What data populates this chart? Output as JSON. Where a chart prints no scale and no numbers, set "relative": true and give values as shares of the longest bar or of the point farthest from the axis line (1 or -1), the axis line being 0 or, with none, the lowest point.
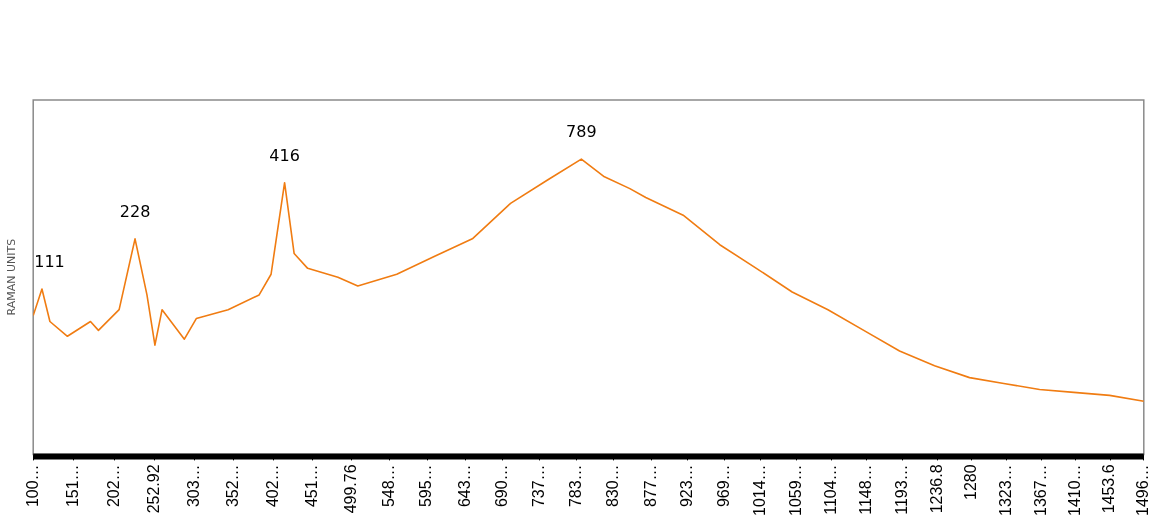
{
  "chart_data": {
    "type": "line",
    "ylabel": "RAMAN UNITS",
    "relative": true,
    "color": "#f07c12",
    "marker": "none",
    "x": [
      100,
      111,
      121,
      143,
      172,
      182,
      208,
      228,
      243,
      253,
      262,
      290,
      305,
      345,
      384,
      399,
      416,
      428,
      445,
      483,
      508,
      557,
      604,
      652,
      700,
      747,
      789,
      818,
      850,
      870,
      917,
      963,
      1009,
      1054,
      1099,
      1144,
      1189,
      1233,
      1277,
      1320,
      1365,
      1408,
      1453,
      1496
    ],
    "values": [
      0.47,
      0.56,
      0.45,
      0.4,
      0.45,
      0.42,
      0.49,
      0.73,
      0.54,
      0.37,
      0.49,
      0.39,
      0.46,
      0.49,
      0.54,
      0.61,
      0.92,
      0.68,
      0.63,
      0.6,
      0.57,
      0.61,
      0.67,
      0.73,
      0.85,
      0.93,
      1,
      0.94,
      0.9,
      0.87,
      0.81,
      0.71,
      0.63,
      0.55,
      0.49,
      0.42,
      0.35,
      0.3,
      0.26,
      0.24,
      0.22,
      0.21,
      0.2,
      0.18
    ],
    "xlim": [
      100,
      1496
    ],
    "xticks": [
      {
        "value": 100,
        "label": "100…"
      },
      {
        "value": 151,
        "label": "151…"
      },
      {
        "value": 202,
        "label": "202…"
      },
      252.92,
      {
        "value": 303,
        "label": "303…"
      },
      {
        "value": 352,
        "label": "352…"
      },
      {
        "value": 402,
        "label": "402…"
      },
      {
        "value": 451,
        "label": "451…"
      },
      499.76,
      {
        "value": 548,
        "label": "548…"
      },
      {
        "value": 595,
        "label": "595…"
      },
      {
        "value": 643,
        "label": "643…"
      },
      {
        "value": 690,
        "label": "690…"
      },
      {
        "value": 737,
        "label": "737…"
      },
      {
        "value": 783,
        "label": "783…"
      },
      {
        "value": 830,
        "label": "830…"
      },
      {
        "value": 877,
        "label": "877…"
      },
      {
        "value": 923,
        "label": "923…"
      },
      {
        "value": 969,
        "label": "969…"
      },
      {
        "value": 1014,
        "label": "1014…"
      },
      {
        "value": 1059,
        "label": "1059…"
      },
      {
        "value": 1104,
        "label": "1104…"
      },
      {
        "value": 1148,
        "label": "1148…"
      },
      {
        "value": 1193,
        "label": "1193…"
      },
      1236.8,
      1280,
      {
        "value": 1323,
        "label": "1323…"
      },
      {
        "value": 1367,
        "label": "1367…"
      },
      {
        "value": 1410,
        "label": "1410…"
      },
      1453.6,
      {
        "value": 1496,
        "label": "1496…"
      }
    ],
    "annotations": [
      {
        "text": "111",
        "x": 111,
        "y": 0.56
      },
      {
        "text": "228",
        "x": 228,
        "y": 0.73
      },
      {
        "text": "416",
        "x": 416,
        "y": 0.92
      },
      {
        "text": "789",
        "x": 789,
        "y": 1
      }
    ]
  }
}
